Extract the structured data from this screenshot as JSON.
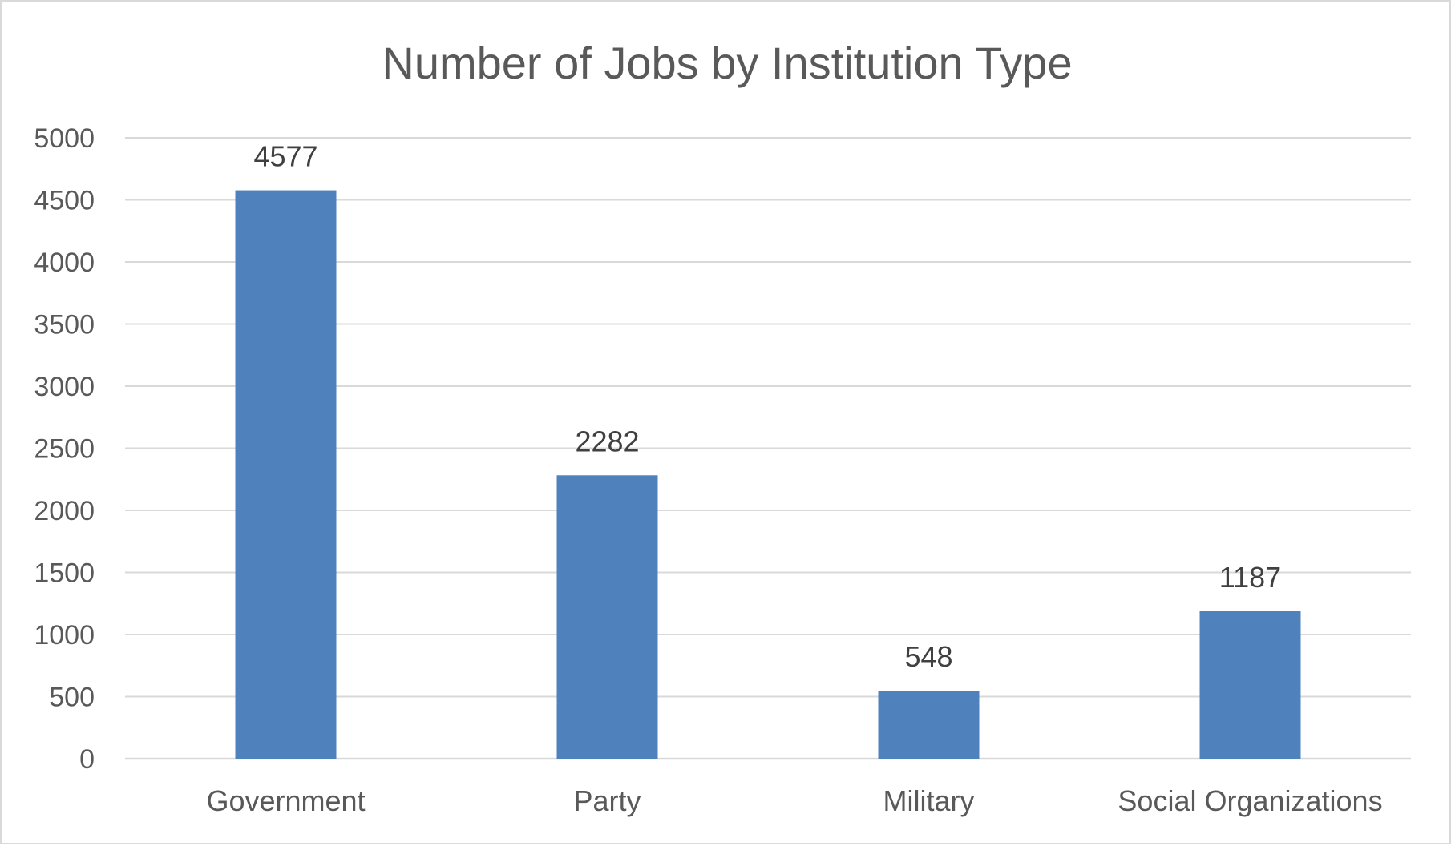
{
  "chart_data": {
    "type": "bar",
    "title": "Number of Jobs by Institution Type",
    "xlabel": "",
    "ylabel": "",
    "categories": [
      "Government",
      "Party",
      "Military",
      "Social Organizations"
    ],
    "values": [
      4577,
      2282,
      548,
      1187
    ],
    "data_labels": [
      "4577",
      "2282",
      "548",
      "1187"
    ],
    "ylim": [
      0,
      5000
    ],
    "yticks": [
      "0",
      "500",
      "1000",
      "1500",
      "2000",
      "2500",
      "3000",
      "3500",
      "4000",
      "4500",
      "5000"
    ],
    "grid": true,
    "legend": "none",
    "bar_color": "#4f81bd"
  }
}
